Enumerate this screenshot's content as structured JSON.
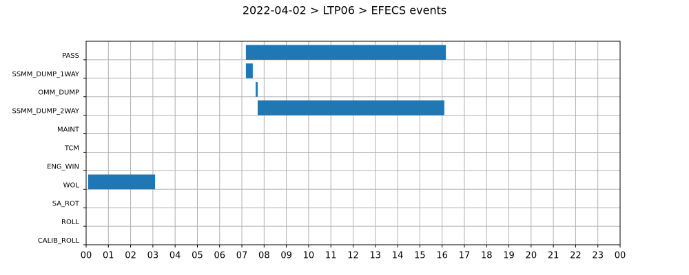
{
  "chart_data": {
    "type": "timeline",
    "title": "2022-04-02 > LTP06 > EFECS events",
    "categories": [
      "PASS",
      "SSMM_DUMP_1WAY",
      "OMM_DUMP",
      "SSMM_DUMP_2WAY",
      "MAINT",
      "TCM",
      "ENG_WIN",
      "WOL",
      "SA_ROT",
      "ROLL",
      "CALIB_ROLL"
    ],
    "values": [
      [
        7.18,
        16.17
      ],
      [
        7.18,
        7.49
      ],
      [
        7.62,
        7.71
      ],
      [
        7.71,
        16.1
      ],
      null,
      null,
      null,
      [
        0.09,
        3.1
      ],
      null,
      null,
      null
    ],
    "color": "#1f77b4",
    "xlim": [
      0,
      24
    ],
    "xticks": [
      {
        "value": 0,
        "label": "00"
      },
      {
        "value": 1,
        "label": "01"
      },
      {
        "value": 2,
        "label": "02"
      },
      {
        "value": 3,
        "label": "03"
      },
      {
        "value": 4,
        "label": "04"
      },
      {
        "value": 5,
        "label": "05"
      },
      {
        "value": 6,
        "label": "06"
      },
      {
        "value": 7,
        "label": "07"
      },
      {
        "value": 8,
        "label": "08"
      },
      {
        "value": 9,
        "label": "09"
      },
      {
        "value": 10,
        "label": "10"
      },
      {
        "value": 11,
        "label": "11"
      },
      {
        "value": 12,
        "label": "12"
      },
      {
        "value": 13,
        "label": "13"
      },
      {
        "value": 14,
        "label": "14"
      },
      {
        "value": 15,
        "label": "15"
      },
      {
        "value": 16,
        "label": "16"
      },
      {
        "value": 17,
        "label": "17"
      },
      {
        "value": 18,
        "label": "18"
      },
      {
        "value": 19,
        "label": "19"
      },
      {
        "value": 20,
        "label": "20"
      },
      {
        "value": 21,
        "label": "21"
      },
      {
        "value": 22,
        "label": "22"
      },
      {
        "value": 23,
        "label": "23"
      },
      {
        "value": 24,
        "label": "00"
      }
    ],
    "grid": true
  }
}
